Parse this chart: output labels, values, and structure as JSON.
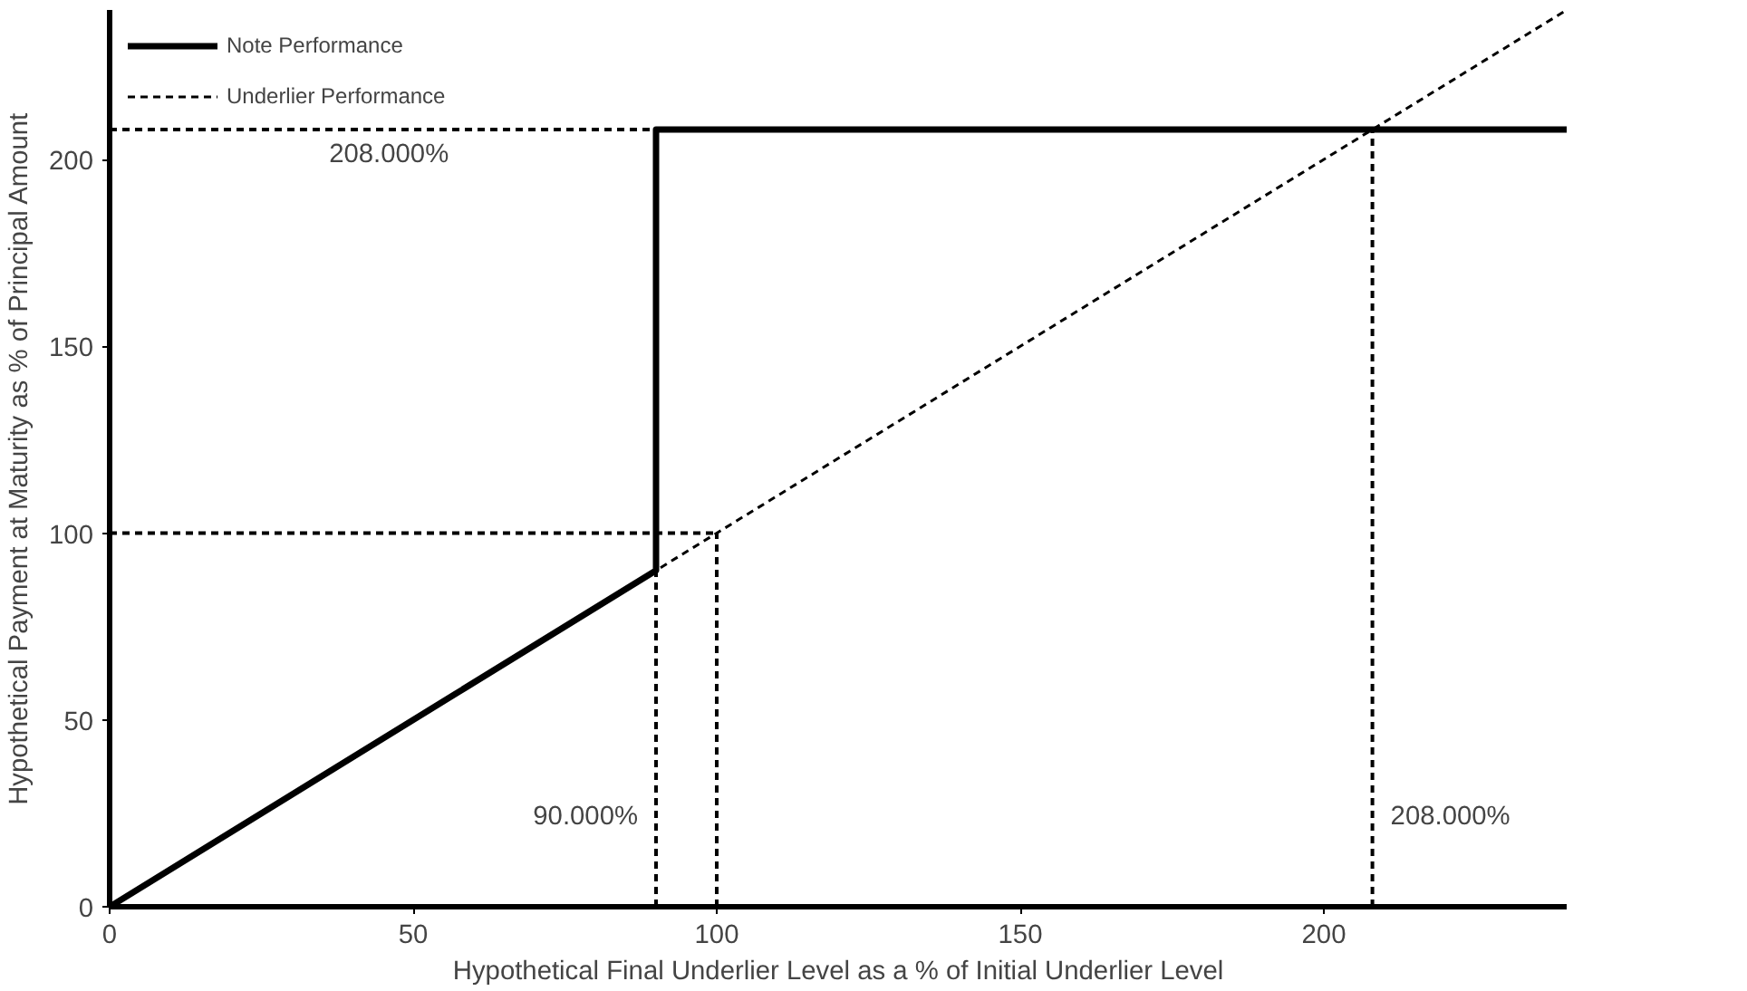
{
  "chart_data": {
    "type": "line",
    "xlabel": "Hypothetical Final Underlier Level as a % of Initial Underlier Level",
    "ylabel": "Hypothetical Payment at Maturity as % of Principal Amount",
    "xlim": [
      0,
      240
    ],
    "ylim": [
      0,
      240
    ],
    "xticks": [
      0,
      50,
      100,
      150,
      200
    ],
    "yticks": [
      0,
      50,
      100,
      150,
      200
    ],
    "grid": false,
    "legend": "top left",
    "marker": "none",
    "series": [
      {
        "name": "Note Performance",
        "color": "#000000",
        "x": [
          0,
          90,
          90,
          240
        ],
        "values": [
          0,
          90,
          208,
          208
        ],
        "line_style": "solid"
      },
      {
        "name": "Underlier Performance",
        "color": "#000000",
        "x": [
          0,
          240
        ],
        "values": [
          0,
          240
        ],
        "line_style": "dashed"
      },
      {
        "color": "#000000",
        "x": [
          0,
          90
        ],
        "values": [
          208,
          208
        ],
        "line_style": "dashed"
      },
      {
        "color": "#000000",
        "x": [
          0,
          100
        ],
        "values": [
          100,
          100
        ],
        "line_style": "dashed"
      },
      {
        "color": "#000000",
        "x": [
          90,
          90
        ],
        "values": [
          0,
          90
        ],
        "line_style": "dashed"
      },
      {
        "color": "#000000",
        "x": [
          100,
          100
        ],
        "values": [
          0,
          100
        ],
        "line_style": "dashed"
      },
      {
        "color": "#000000",
        "x": [
          208,
          208
        ],
        "values": [
          0,
          208
        ],
        "line_style": "dashed"
      }
    ],
    "annotations": [
      {
        "text": "208.000%",
        "x": 46,
        "y": 208
      },
      {
        "text": "90.000%",
        "x": 90,
        "y": 24
      },
      {
        "text": "208.000%",
        "x": 208,
        "y": 24
      }
    ]
  }
}
